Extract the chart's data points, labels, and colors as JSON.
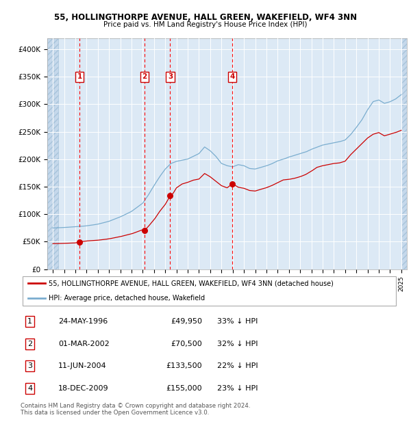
{
  "title1": "55, HOLLINGTHORPE AVENUE, HALL GREEN, WAKEFIELD, WF4 3NN",
  "title2": "Price paid vs. HM Land Registry's House Price Index (HPI)",
  "plot_bg": "#dce9f5",
  "purchases": [
    {
      "date_num": 1996.38,
      "price": 49950,
      "label": "1"
    },
    {
      "date_num": 2002.17,
      "price": 70500,
      "label": "2"
    },
    {
      "date_num": 2004.44,
      "price": 133500,
      "label": "3"
    },
    {
      "date_num": 2009.96,
      "price": 155000,
      "label": "4"
    }
  ],
  "legend_entries": [
    "55, HOLLINGTHORPE AVENUE, HALL GREEN, WAKEFIELD, WF4 3NN (detached house)",
    "HPI: Average price, detached house, Wakefield"
  ],
  "table_rows": [
    {
      "num": "1",
      "date": "24-MAY-1996",
      "price": "£49,950",
      "pct": "33% ↓ HPI"
    },
    {
      "num": "2",
      "date": "01-MAR-2002",
      "price": "£70,500",
      "pct": "32% ↓ HPI"
    },
    {
      "num": "3",
      "date": "11-JUN-2004",
      "price": "£133,500",
      "pct": "22% ↓ HPI"
    },
    {
      "num": "4",
      "date": "18-DEC-2009",
      "price": "£155,000",
      "pct": "23% ↓ HPI"
    }
  ],
  "footer": "Contains HM Land Registry data © Crown copyright and database right 2024.\nThis data is licensed under the Open Government Licence v3.0.",
  "ylim": [
    0,
    420000
  ],
  "xlim_start": 1993.5,
  "xlim_end": 2025.5,
  "hpi_keypoints": [
    [
      1994.0,
      75000
    ],
    [
      1995.0,
      76000
    ],
    [
      1996.0,
      77000
    ],
    [
      1997.0,
      79000
    ],
    [
      1998.0,
      82000
    ],
    [
      1999.0,
      87000
    ],
    [
      2000.0,
      95000
    ],
    [
      2001.0,
      105000
    ],
    [
      2002.0,
      120000
    ],
    [
      2002.5,
      135000
    ],
    [
      2003.0,
      152000
    ],
    [
      2003.5,
      168000
    ],
    [
      2004.0,
      182000
    ],
    [
      2004.5,
      192000
    ],
    [
      2005.0,
      196000
    ],
    [
      2005.5,
      198000
    ],
    [
      2006.0,
      200000
    ],
    [
      2006.5,
      205000
    ],
    [
      2007.0,
      210000
    ],
    [
      2007.5,
      222000
    ],
    [
      2008.0,
      215000
    ],
    [
      2008.5,
      205000
    ],
    [
      2009.0,
      192000
    ],
    [
      2009.5,
      188000
    ],
    [
      2010.0,
      186000
    ],
    [
      2010.5,
      190000
    ],
    [
      2011.0,
      188000
    ],
    [
      2011.5,
      183000
    ],
    [
      2012.0,
      182000
    ],
    [
      2012.5,
      185000
    ],
    [
      2013.0,
      188000
    ],
    [
      2013.5,
      192000
    ],
    [
      2014.0,
      197000
    ],
    [
      2014.5,
      200000
    ],
    [
      2015.0,
      204000
    ],
    [
      2015.5,
      207000
    ],
    [
      2016.0,
      210000
    ],
    [
      2016.5,
      213000
    ],
    [
      2017.0,
      218000
    ],
    [
      2017.5,
      222000
    ],
    [
      2018.0,
      226000
    ],
    [
      2018.5,
      228000
    ],
    [
      2019.0,
      230000
    ],
    [
      2019.5,
      232000
    ],
    [
      2020.0,
      235000
    ],
    [
      2020.5,
      245000
    ],
    [
      2021.0,
      258000
    ],
    [
      2021.5,
      272000
    ],
    [
      2022.0,
      290000
    ],
    [
      2022.5,
      305000
    ],
    [
      2023.0,
      308000
    ],
    [
      2023.5,
      302000
    ],
    [
      2024.0,
      305000
    ],
    [
      2024.5,
      310000
    ],
    [
      2025.0,
      318000
    ]
  ],
  "red_keypoints": [
    [
      1994.0,
      46500
    ],
    [
      1995.0,
      47200
    ],
    [
      1996.0,
      48000
    ],
    [
      1996.38,
      49950
    ],
    [
      1997.0,
      51500
    ],
    [
      1998.0,
      53000
    ],
    [
      1999.0,
      55500
    ],
    [
      2000.0,
      59500
    ],
    [
      2001.0,
      64500
    ],
    [
      2002.0,
      72000
    ],
    [
      2002.17,
      70500
    ],
    [
      2002.5,
      78000
    ],
    [
      2003.0,
      90000
    ],
    [
      2003.5,
      105000
    ],
    [
      2004.0,
      118000
    ],
    [
      2004.44,
      133500
    ],
    [
      2004.7,
      138000
    ],
    [
      2005.0,
      148000
    ],
    [
      2005.5,
      155000
    ],
    [
      2006.0,
      158000
    ],
    [
      2006.5,
      162000
    ],
    [
      2007.0,
      164000
    ],
    [
      2007.5,
      174000
    ],
    [
      2008.0,
      168000
    ],
    [
      2008.5,
      160000
    ],
    [
      2009.0,
      152000
    ],
    [
      2009.5,
      148000
    ],
    [
      2009.96,
      155000
    ],
    [
      2010.0,
      155000
    ],
    [
      2010.5,
      149000
    ],
    [
      2011.0,
      147000
    ],
    [
      2011.5,
      143000
    ],
    [
      2012.0,
      142000
    ],
    [
      2012.5,
      145000
    ],
    [
      2013.0,
      148000
    ],
    [
      2013.5,
      152000
    ],
    [
      2014.0,
      157000
    ],
    [
      2014.5,
      162000
    ],
    [
      2015.0,
      163000
    ],
    [
      2015.5,
      165000
    ],
    [
      2016.0,
      168000
    ],
    [
      2016.5,
      172000
    ],
    [
      2017.0,
      178000
    ],
    [
      2017.5,
      185000
    ],
    [
      2018.0,
      188000
    ],
    [
      2018.5,
      190000
    ],
    [
      2019.0,
      192000
    ],
    [
      2019.5,
      193000
    ],
    [
      2020.0,
      196000
    ],
    [
      2020.5,
      208000
    ],
    [
      2021.0,
      218000
    ],
    [
      2021.5,
      228000
    ],
    [
      2022.0,
      238000
    ],
    [
      2022.5,
      245000
    ],
    [
      2023.0,
      248000
    ],
    [
      2023.5,
      242000
    ],
    [
      2024.0,
      245000
    ],
    [
      2024.5,
      248000
    ],
    [
      2025.0,
      252000
    ]
  ]
}
